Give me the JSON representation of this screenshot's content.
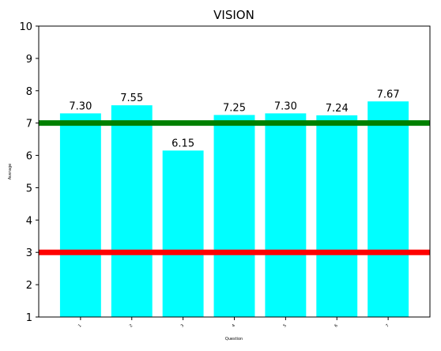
{
  "chart_data": {
    "type": "bar",
    "title": "VISION",
    "xlabel": "Question",
    "ylabel": "Average",
    "categories": [
      "1",
      "2",
      "3",
      "4",
      "5",
      "6",
      "7"
    ],
    "values": [
      7.3,
      7.55,
      6.15,
      7.25,
      7.3,
      7.24,
      7.67
    ],
    "value_labels": [
      "7.30",
      "7.55",
      "6.15",
      "7.25",
      "7.30",
      "7.24",
      "7.67"
    ],
    "ylim": [
      1,
      10
    ],
    "yticks": [
      1,
      2,
      3,
      4,
      5,
      6,
      7,
      8,
      9,
      10
    ],
    "reference_lines": [
      {
        "value": 7.0,
        "color": "#008000"
      },
      {
        "value": 3.0,
        "color": "#ff0000"
      }
    ],
    "bar_color": "#00ffff",
    "grid": false,
    "legend": "none"
  }
}
